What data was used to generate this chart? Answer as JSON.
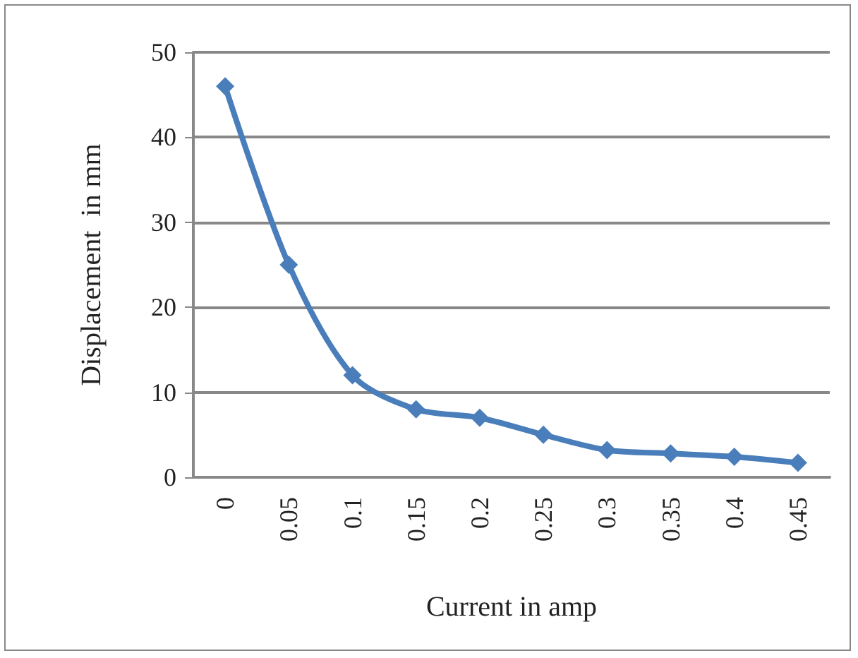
{
  "chart_data": {
    "type": "line",
    "xlabel": "Current in amp",
    "ylabel": "Displacement  in mm",
    "categories": [
      "0",
      "0.05",
      "0.1",
      "0.15",
      "0.2",
      "0.25",
      "0.3",
      "0.35",
      "0.4",
      "0.45"
    ],
    "series": [
      {
        "color": "#4a7ebb",
        "values": [
          46,
          25,
          12,
          8,
          7,
          5,
          3.2,
          2.8,
          2.4,
          1.7
        ]
      }
    ],
    "ylim": [
      0,
      50
    ],
    "yticks": [
      0,
      10,
      20,
      30,
      40,
      50
    ],
    "grid": "y",
    "marker": "diamond",
    "line_style": "solid"
  }
}
